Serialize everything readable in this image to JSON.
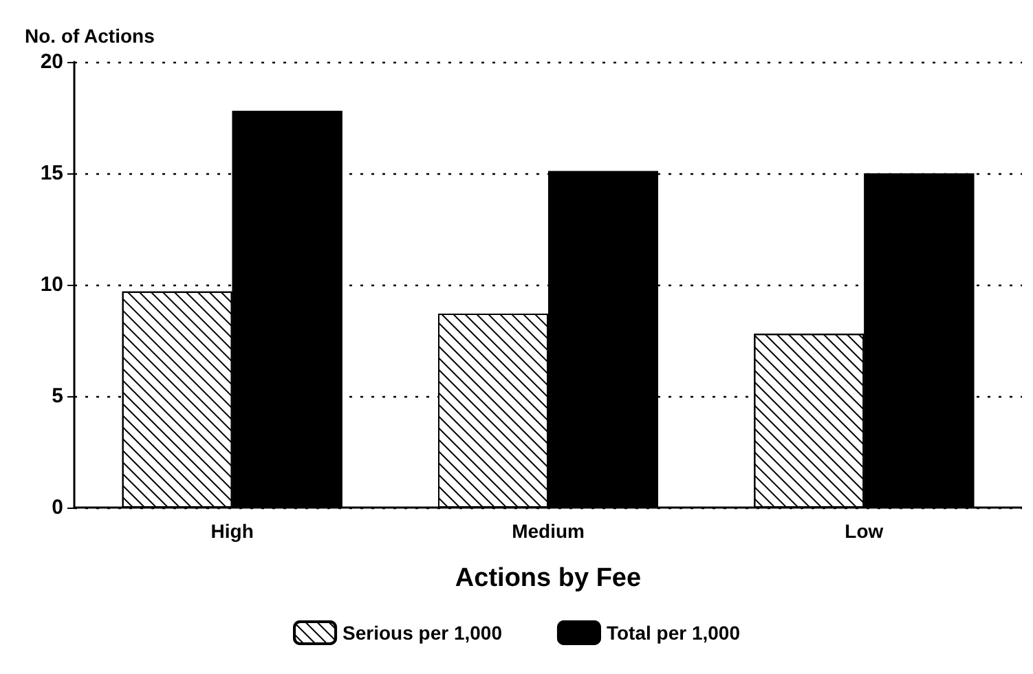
{
  "chart_data": {
    "type": "bar",
    "ylabel": "No. of Actions",
    "xlabel": "Actions by Fee",
    "categories": [
      "High",
      "Medium",
      "Low"
    ],
    "series": [
      {
        "name": "Serious per 1,000",
        "color": "#ffffff",
        "values": [
          9.7,
          8.7,
          7.8
        ]
      },
      {
        "name": "Total per 1,000",
        "color": "#000000",
        "values": [
          17.8,
          15.1,
          15.0
        ]
      }
    ],
    "ylim": [
      0,
      20
    ],
    "yticks": [
      0,
      5,
      10,
      15,
      20
    ],
    "grid": "y",
    "legend": "bottom"
  }
}
